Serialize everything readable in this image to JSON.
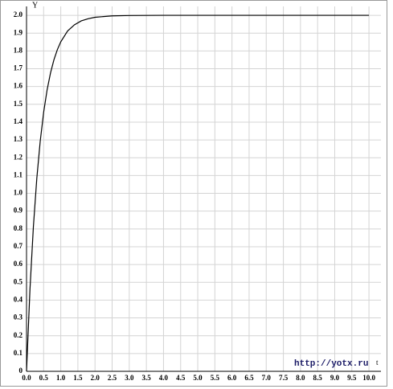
{
  "chart_data": {
    "type": "line",
    "y_label": "Y",
    "x_label": "t",
    "watermark": "http://yotx.ru",
    "x": [
      0,
      0.1,
      0.2,
      0.3,
      0.4,
      0.5,
      0.6,
      0.7,
      0.8,
      0.9,
      1.0,
      1.2,
      1.4,
      1.6,
      1.8,
      2.0,
      2.5,
      3.0,
      4.0,
      5.0,
      6.0,
      7.0,
      8.0,
      9.0,
      10.0
    ],
    "series": [
      {
        "color": "#000000",
        "values": [
          0,
          0.458,
          0.811,
          1.083,
          1.293,
          1.455,
          1.58,
          1.676,
          1.75,
          1.807,
          1.851,
          1.912,
          1.947,
          1.969,
          1.981,
          1.989,
          1.997,
          1.999,
          2.0,
          2.0,
          2.0,
          2.0,
          2.0,
          2.0,
          2.0
        ]
      }
    ],
    "xlim": [
      0,
      10.35
    ],
    "ylim": [
      0,
      2.05
    ],
    "grid": true,
    "xticks": [
      {
        "value": 0,
        "label": "0.0"
      },
      0.5,
      {
        "value": 1,
        "label": "1.0"
      },
      1.5,
      {
        "value": 2,
        "label": "2.0"
      },
      2.5,
      {
        "value": 3,
        "label": "3.0"
      },
      3.5,
      {
        "value": 4,
        "label": "4.0"
      },
      4.5,
      {
        "value": 5,
        "label": "5.0"
      },
      5.5,
      {
        "value": 6,
        "label": "6.0"
      },
      6.5,
      {
        "value": 7,
        "label": "7.0"
      },
      7.5,
      {
        "value": 8,
        "label": "8.0"
      },
      8.5,
      {
        "value": 9,
        "label": "9.0"
      },
      9.5,
      {
        "value": 10,
        "label": "10.0"
      }
    ],
    "yticks": [
      0,
      0.1,
      0.2,
      0.3,
      0.4,
      0.5,
      0.6,
      0.7,
      0.8,
      0.9,
      {
        "value": 1,
        "label": "1.0"
      },
      1.1,
      1.2,
      1.3,
      1.4,
      1.5,
      1.6,
      1.7,
      1.8,
      1.9,
      {
        "value": 2,
        "label": "2.0"
      }
    ]
  }
}
